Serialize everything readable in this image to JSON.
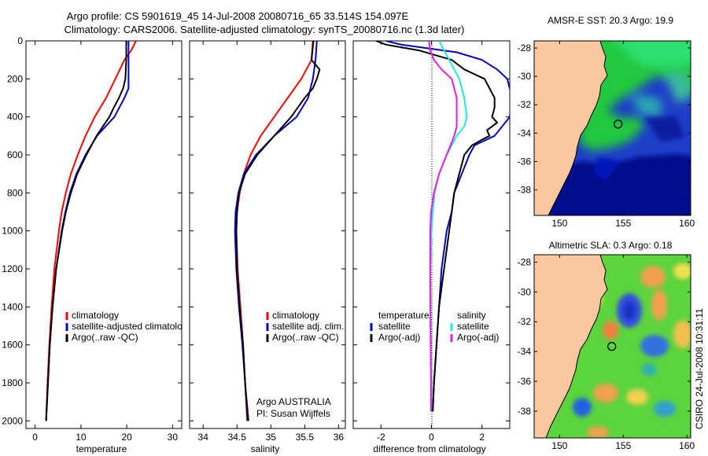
{
  "figure": {
    "title_line1": "Argo profile: CS 5901619_45 14-Jul-2008 20080716_65 33.514S 154.097E",
    "title_line2": "Climatology: CARS2006. Satellite-adjusted climatology: synTS_20080716.nc (1.3d later)",
    "credit": "CSIRO 24-Jul-2008 10:31:11",
    "argo_note_line1": "Argo AUSTRALIA",
    "argo_note_line2": "PI: Susan Wijffels"
  },
  "colors": {
    "red": "#ff0000",
    "blue": "#0000cc",
    "black": "#000000",
    "cyan": "#22e6e6",
    "magenta": "#e61ee6",
    "land": "#f7c8a0",
    "ocean_warm": "#33cc44",
    "ocean_cold": "#000b8c"
  },
  "chart_data": [
    {
      "type": "line",
      "id": "temperature",
      "xlabel": "temperature",
      "xlim": [
        -2,
        32
      ],
      "ylim": [
        2040,
        0
      ],
      "xticks": [
        0,
        10,
        20,
        30
      ],
      "yticks": [
        0,
        200,
        400,
        600,
        800,
        1000,
        1200,
        1400,
        1600,
        1800,
        2000
      ],
      "legend": [
        "climatology",
        "satellite-adjusted climatology",
        "Argo(..raw -QC)"
      ],
      "series": [
        {
          "name": "climatology",
          "color": "red",
          "depth": [
            0,
            50,
            100,
            200,
            300,
            400,
            500,
            600,
            700,
            800,
            900,
            1000,
            1200,
            1400,
            1600,
            1800,
            2000
          ],
          "values": [
            22,
            21,
            19.5,
            17.5,
            15.5,
            13,
            11,
            9.3,
            7.8,
            6.7,
            5.8,
            5.2,
            4.2,
            3.6,
            3.1,
            2.7,
            2.4
          ]
        },
        {
          "name": "satellite-adjusted climatology",
          "color": "blue",
          "depth": [
            0,
            150,
            250,
            300,
            400,
            500,
            600,
            700,
            800,
            900,
            1000,
            1200,
            1400,
            1600,
            1800,
            2000
          ],
          "values": [
            20.4,
            20.4,
            20.4,
            19.5,
            17.3,
            13.5,
            11,
            9,
            7.6,
            6.6,
            5.8,
            4.6,
            3.8,
            3.2,
            2.8,
            2.4
          ]
        },
        {
          "name": "Argo(..raw -QC)",
          "color": "black",
          "depth": [
            0,
            100,
            200,
            250,
            300,
            350,
            400,
            450,
            500,
            600,
            700,
            800,
            900,
            1000,
            1200,
            1400,
            1600,
            1800,
            2000
          ],
          "values": [
            19.9,
            19.9,
            19.7,
            19.2,
            18.3,
            17.2,
            16.2,
            14.8,
            13.4,
            11.2,
            9.2,
            7.8,
            6.7,
            5.9,
            4.6,
            3.8,
            3.2,
            2.8,
            2.4
          ]
        }
      ]
    },
    {
      "type": "line",
      "id": "salinity",
      "xlabel": "salinity",
      "xlim": [
        33.8,
        36.1
      ],
      "ylim": [
        2040,
        0
      ],
      "xticks": [
        34,
        34.5,
        35,
        35.5,
        36
      ],
      "legend": [
        "climatology",
        "satellite adj. clim.",
        "Argo(..raw -QC)"
      ],
      "series": [
        {
          "name": "climatology",
          "color": "red",
          "depth": [
            0,
            100,
            200,
            300,
            400,
            500,
            600,
            700,
            800,
            900,
            1000,
            1200,
            1400,
            1600,
            1800,
            2000
          ],
          "values": [
            35.62,
            35.6,
            35.45,
            35.25,
            35.05,
            34.85,
            34.7,
            34.6,
            34.54,
            34.5,
            34.49,
            34.51,
            34.55,
            34.59,
            34.62,
            34.65
          ]
        },
        {
          "name": "satellite adj. clim.",
          "color": "blue",
          "depth": [
            0,
            100,
            200,
            300,
            400,
            500,
            600,
            700,
            800,
            900,
            1000,
            1200,
            1400,
            1600,
            1800,
            2000
          ],
          "values": [
            35.68,
            35.66,
            35.62,
            35.55,
            35.38,
            35.05,
            34.78,
            34.6,
            34.52,
            34.48,
            34.47,
            34.49,
            34.53,
            34.58,
            34.62,
            34.67
          ]
        },
        {
          "name": "Argo(..raw -QC)",
          "color": "black",
          "depth": [
            0,
            100,
            150,
            200,
            250,
            300,
            400,
            500,
            600,
            700,
            800,
            900,
            1000,
            1200,
            1400,
            1600,
            1800,
            2000
          ],
          "values": [
            35.63,
            35.6,
            35.72,
            35.68,
            35.62,
            35.5,
            35.3,
            35.05,
            34.8,
            34.62,
            34.53,
            34.5,
            34.49,
            34.5,
            34.54,
            34.59,
            34.62,
            34.66
          ]
        }
      ]
    },
    {
      "type": "line",
      "id": "difference",
      "xlabel": "difference from climatology",
      "xlim": [
        -3.1,
        3.1
      ],
      "ylim": [
        2040,
        0
      ],
      "xticks": [
        -2,
        0,
        2
      ],
      "legend_left_title": "temperature",
      "legend_left": [
        "satellite",
        "Argo(-adj)"
      ],
      "legend_right_title": "salinity",
      "legend_right": [
        "satellite",
        "Argo(-adj)"
      ],
      "series": [
        {
          "name": "temperature satellite",
          "color": "blue",
          "depth": [
            0,
            20,
            60,
            100,
            150,
            200,
            300,
            400,
            500,
            550,
            600,
            700,
            800,
            900,
            1000,
            1200,
            1400,
            1600,
            1800,
            1950
          ],
          "values": [
            -1.8,
            -1.2,
            1.0,
            2.0,
            2.6,
            3.0,
            3.2,
            3.1,
            2.5,
            1.7,
            1.5,
            1.2,
            0.9,
            0.8,
            0.6,
            0.4,
            0.3,
            0.2,
            0.1,
            0.05
          ]
        },
        {
          "name": "temperature Argo(-adj)",
          "color": "black",
          "depth": [
            0,
            20,
            50,
            100,
            150,
            200,
            250,
            300,
            350,
            400,
            430,
            470,
            500,
            520,
            550,
            600,
            700,
            800,
            900,
            1000,
            1200,
            1400,
            1600,
            1800,
            1950
          ],
          "values": [
            -2.2,
            -1.8,
            -0.5,
            0.8,
            1.3,
            2.1,
            2.3,
            2.5,
            2.5,
            2.4,
            2.6,
            2.2,
            2.3,
            2.0,
            1.6,
            1.3,
            1.1,
            0.9,
            0.8,
            0.7,
            0.5,
            0.3,
            0.2,
            0.1,
            0.05
          ]
        },
        {
          "name": "salinity satellite",
          "color": "cyan",
          "depth": [
            0,
            50,
            100,
            150,
            200,
            300,
            400,
            450,
            500,
            600,
            700,
            800,
            900,
            1000,
            1200,
            1400,
            1600,
            1800,
            1950
          ],
          "values": [
            0.3,
            0.5,
            0.7,
            0.9,
            1.1,
            1.3,
            1.4,
            1.3,
            1.0,
            0.6,
            0.3,
            0.12,
            0.05,
            0.0,
            -0.05,
            -0.05,
            -0.03,
            -0.02,
            -0.01
          ]
        },
        {
          "name": "salinity Argo(-adj)",
          "color": "magenta",
          "depth": [
            0,
            50,
            100,
            150,
            200,
            300,
            400,
            450,
            500,
            600,
            700,
            800,
            900,
            1000,
            1200,
            1400,
            1600,
            1800,
            1950
          ],
          "values": [
            -0.1,
            -0.05,
            0.1,
            0.4,
            0.8,
            1.0,
            1.0,
            1.0,
            0.9,
            0.6,
            0.3,
            0.1,
            -0.02,
            -0.05,
            -0.05,
            -0.04,
            -0.03,
            -0.02,
            -0.02
          ]
        }
      ]
    },
    {
      "type": "heatmap",
      "id": "sst_map",
      "title": "AMSR-E SST: 20.3 Argo: 19.9",
      "xlim": [
        148,
        160.3
      ],
      "ylim": [
        -39.8,
        -27.5
      ],
      "xticks": [
        150,
        155,
        160
      ],
      "yticks": [
        -28,
        -30,
        -32,
        -34,
        -36,
        -38
      ],
      "argo_position": [
        154.097,
        -33.514
      ]
    },
    {
      "type": "heatmap",
      "id": "sla_map",
      "title": "Altimetric SLA: 0.3 Argo: 0.18",
      "xlim": [
        148,
        160.3
      ],
      "ylim": [
        -39.8,
        -27.5
      ],
      "xticks": [
        150,
        155,
        160
      ],
      "yticks": [
        -28,
        -30,
        -32,
        -34,
        -36,
        -38
      ],
      "argo_position": [
        154.097,
        -33.514
      ]
    }
  ]
}
